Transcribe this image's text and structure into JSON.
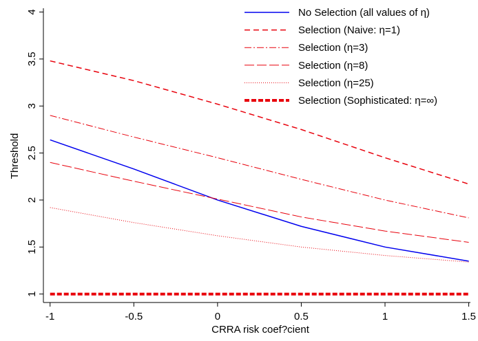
{
  "chart_data": {
    "type": "line",
    "x_label": "CRRA risk coef?cient",
    "y_label": "Threshold",
    "x": [
      -1,
      -0.5,
      0,
      0.5,
      1,
      1.5
    ],
    "xlim": [
      -1.04,
      1.51
    ],
    "ylim": [
      0.91,
      4.04
    ],
    "xticks": [
      -1,
      -0.5,
      0,
      0.5,
      1,
      1.5
    ],
    "yticks": [
      1,
      1.5,
      2,
      2.5,
      3,
      3.5,
      4
    ],
    "series": [
      {
        "name": "No Selection (all values of η)",
        "color": "#0000ee",
        "dash": "none",
        "width": 1.5,
        "values": [
          2.64,
          2.33,
          2.0,
          1.72,
          1.5,
          1.35
        ]
      },
      {
        "name": "Selection (Naive: η=1)",
        "color": "#e8000b",
        "dash": "8 5",
        "width": 1.5,
        "values": [
          3.48,
          3.27,
          3.02,
          2.75,
          2.45,
          2.17
        ]
      },
      {
        "name": "Selection (η=3)",
        "color": "#e8000b",
        "dash": "10 3 2 3",
        "width": 1,
        "values": [
          2.9,
          2.67,
          2.45,
          2.22,
          2.0,
          1.81
        ]
      },
      {
        "name": "Selection (η=8)",
        "color": "#e8000b",
        "dash": "14 4",
        "width": 1,
        "values": [
          2.4,
          2.2,
          2.01,
          1.82,
          1.67,
          1.55
        ]
      },
      {
        "name": "Selection (η=25)",
        "color": "#e8000b",
        "dash": "1 2",
        "width": 1,
        "values": [
          1.92,
          1.76,
          1.62,
          1.5,
          1.41,
          1.34
        ]
      },
      {
        "name": "Selection (Sophisticated: η=∞)",
        "color": "#e8000b",
        "dash": "7 3",
        "width": 4,
        "values": [
          1,
          1,
          1,
          1,
          1,
          1
        ]
      }
    ]
  }
}
